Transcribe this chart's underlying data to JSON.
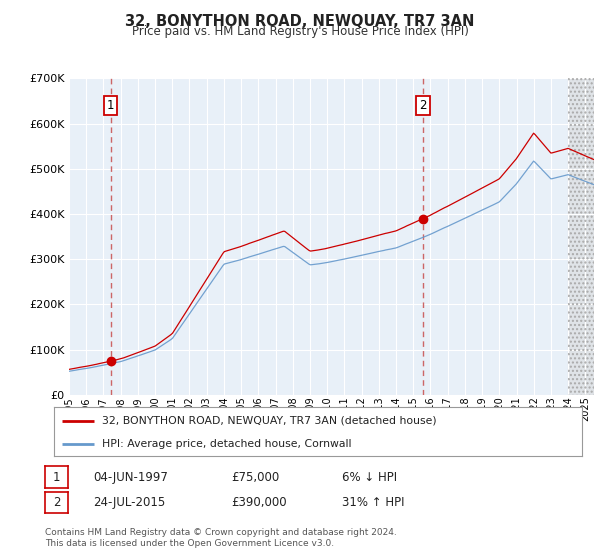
{
  "title": "32, BONYTHON ROAD, NEWQUAY, TR7 3AN",
  "subtitle": "Price paid vs. HM Land Registry's House Price Index (HPI)",
  "ylim": [
    0,
    700000
  ],
  "yticks": [
    0,
    100000,
    200000,
    300000,
    400000,
    500000,
    600000,
    700000
  ],
  "bg_color": "#e8f0f8",
  "grid_color": "#ffffff",
  "sale1_date": 1997.42,
  "sale1_price": 75000,
  "sale2_date": 2015.56,
  "sale2_price": 390000,
  "sale1_note": "04-JUN-1997",
  "sale1_price_str": "£75,000",
  "sale1_pct": "6% ↓ HPI",
  "sale2_note": "24-JUL-2015",
  "sale2_price_str": "£390,000",
  "sale2_pct": "31% ↑ HPI",
  "legend_line1": "32, BONYTHON ROAD, NEWQUAY, TR7 3AN (detached house)",
  "legend_line2": "HPI: Average price, detached house, Cornwall",
  "footnote": "Contains HM Land Registry data © Crown copyright and database right 2024.\nThis data is licensed under the Open Government Licence v3.0.",
  "line_color_red": "#cc0000",
  "line_color_blue": "#6699cc",
  "xmin": 1995,
  "xmax": 2025.5,
  "hatch_start": 2024.0
}
